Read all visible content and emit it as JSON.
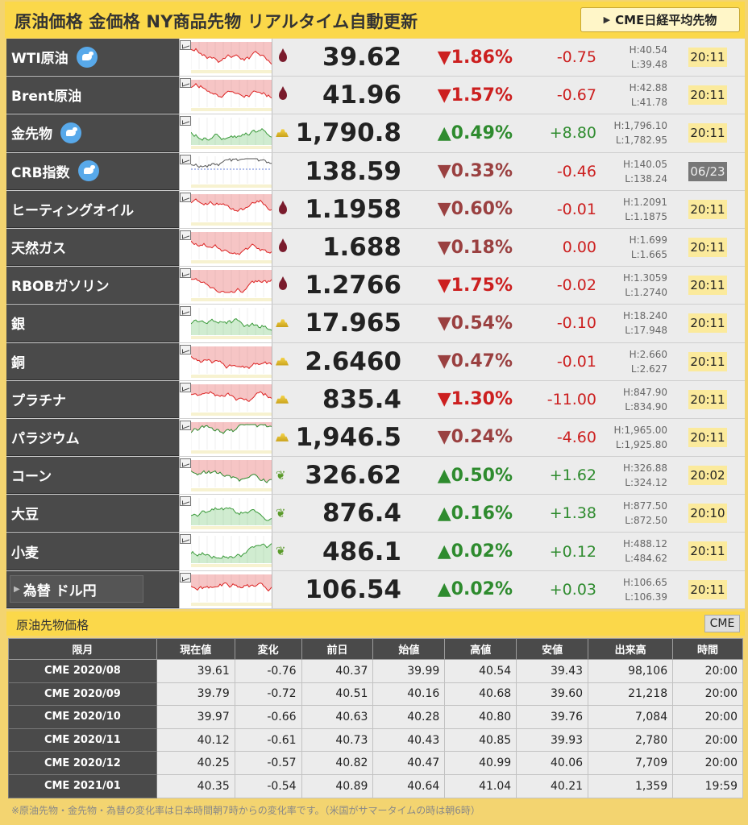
{
  "header": {
    "title": "原油価格 金価格 NY商品先物 リアルタイム自動更新",
    "button": "CME日経平均先物"
  },
  "rows": [
    {
      "name": "WTI原油",
      "twitter": true,
      "icon": "oil-drop-icon",
      "price": "39.62",
      "pct": "▼1.86%",
      "chg": "-0.75",
      "high": "H:40.54",
      "low": "L:39.48",
      "time": "20:11",
      "trend": "down",
      "chart": "red"
    },
    {
      "name": "Brent原油",
      "twitter": false,
      "icon": "oil-drop-icon",
      "price": "41.96",
      "pct": "▼1.57%",
      "chg": "-0.67",
      "high": "H:42.88",
      "low": "L:41.78",
      "time": "20:11",
      "trend": "down",
      "chart": "red"
    },
    {
      "name": "金先物",
      "twitter": true,
      "icon": "gold-bar-icon",
      "price": "1,790.8",
      "pct": "▲0.49%",
      "chg": "+8.80",
      "high": "H:1,796.10",
      "low": "L:1,782.95",
      "time": "20:11",
      "trend": "up",
      "chart": "green"
    },
    {
      "name": "CRB指数",
      "twitter": true,
      "icon": "",
      "price": "138.59",
      "pct": "▼0.33%",
      "chg": "-0.46",
      "high": "H:140.05",
      "low": "L:138.24",
      "time": "06/23",
      "trend": "downl",
      "chart": "line",
      "stale": true
    },
    {
      "name": "ヒーティングオイル",
      "twitter": false,
      "icon": "oil-drop-icon",
      "price": "1.1958",
      "pct": "▼0.60%",
      "chg": "-0.01",
      "high": "H:1.2091",
      "low": "L:1.1875",
      "time": "20:11",
      "trend": "downl",
      "chart": "red"
    },
    {
      "name": "天然ガス",
      "twitter": false,
      "icon": "oil-drop-icon",
      "price": "1.688",
      "pct": "▼0.18%",
      "chg": "0.00",
      "high": "H:1.699",
      "low": "L:1.665",
      "time": "20:11",
      "trend": "downl",
      "chart": "red"
    },
    {
      "name": "RBOBガソリン",
      "twitter": false,
      "icon": "oil-drop-icon",
      "price": "1.2766",
      "pct": "▼1.75%",
      "chg": "-0.02",
      "high": "H:1.3059",
      "low": "L:1.2740",
      "time": "20:11",
      "trend": "down",
      "chart": "red"
    },
    {
      "name": "銀",
      "twitter": false,
      "icon": "gold-bar-icon",
      "price": "17.965",
      "pct": "▼0.54%",
      "chg": "-0.10",
      "high": "H:18.240",
      "low": "L:17.948",
      "time": "20:11",
      "trend": "downl",
      "chart": "green"
    },
    {
      "name": "銅",
      "twitter": false,
      "icon": "gold-bar-icon",
      "price": "2.6460",
      "pct": "▼0.47%",
      "chg": "-0.01",
      "high": "H:2.660",
      "low": "L:2.627",
      "time": "20:11",
      "trend": "downl",
      "chart": "red"
    },
    {
      "name": "プラチナ",
      "twitter": false,
      "icon": "gold-bar-icon",
      "price": "835.4",
      "pct": "▼1.30%",
      "chg": "-11.00",
      "high": "H:847.90",
      "low": "L:834.90",
      "time": "20:11",
      "trend": "down",
      "chart": "red"
    },
    {
      "name": "パラジウム",
      "twitter": false,
      "icon": "gold-bar-icon",
      "price": "1,946.5",
      "pct": "▼0.24%",
      "chg": "-4.60",
      "high": "H:1,965.00",
      "low": "L:1,925.80",
      "time": "20:11",
      "trend": "downl",
      "chart": "mixed"
    },
    {
      "name": "コーン",
      "twitter": false,
      "icon": "wheat-icon",
      "price": "326.62",
      "pct": "▲0.50%",
      "chg": "+1.62",
      "high": "H:326.88",
      "low": "L:324.12",
      "time": "20:02",
      "trend": "up",
      "chart": "mixed"
    },
    {
      "name": "大豆",
      "twitter": false,
      "icon": "wheat-icon",
      "price": "876.4",
      "pct": "▲0.16%",
      "chg": "+1.38",
      "high": "H:877.50",
      "low": "L:872.50",
      "time": "20:10",
      "trend": "up",
      "chart": "green"
    },
    {
      "name": "小麦",
      "twitter": false,
      "icon": "wheat-icon",
      "price": "486.1",
      "pct": "▲0.02%",
      "chg": "+0.12",
      "high": "H:488.12",
      "low": "L:484.62",
      "time": "20:11",
      "trend": "up",
      "chart": "green"
    },
    {
      "name": "為替 ドル円",
      "twitter": false,
      "icon": "",
      "price": "106.54",
      "pct": "▲0.02%",
      "chg": "+0.03",
      "high": "H:106.65",
      "low": "L:106.39",
      "time": "20:11",
      "trend": "up",
      "chart": "red",
      "fx": true
    }
  ],
  "futures": {
    "title": "原油先物価格",
    "button": "CME",
    "columns": [
      "限月",
      "現在値",
      "変化",
      "前日",
      "始値",
      "高値",
      "安値",
      "出来高",
      "時間"
    ],
    "rows": [
      [
        "CME 2020/08",
        "39.61",
        "-0.76",
        "40.37",
        "39.99",
        "40.54",
        "39.43",
        "98,106",
        "20:00"
      ],
      [
        "CME 2020/09",
        "39.79",
        "-0.72",
        "40.51",
        "40.16",
        "40.68",
        "39.60",
        "21,218",
        "20:00"
      ],
      [
        "CME 2020/10",
        "39.97",
        "-0.66",
        "40.63",
        "40.28",
        "40.80",
        "39.76",
        "7,084",
        "20:00"
      ],
      [
        "CME 2020/11",
        "40.12",
        "-0.61",
        "40.73",
        "40.43",
        "40.85",
        "39.93",
        "2,780",
        "20:00"
      ],
      [
        "CME 2020/12",
        "40.25",
        "-0.57",
        "40.82",
        "40.47",
        "40.99",
        "40.06",
        "7,709",
        "20:00"
      ],
      [
        "CME 2021/01",
        "40.35",
        "-0.54",
        "40.89",
        "40.64",
        "41.04",
        "40.21",
        "1,359",
        "19:59"
      ]
    ]
  },
  "note": "※原油先物・金先物・為替の変化率は日本時間朝7時からの変化率です。（米国がサマータイムの時は朝6時）"
}
